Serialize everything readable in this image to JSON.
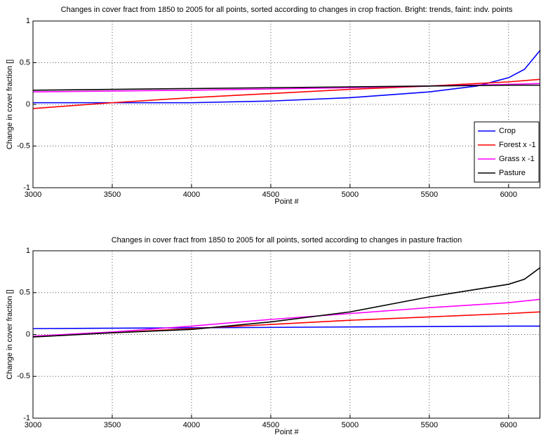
{
  "chart_data": [
    {
      "type": "line",
      "title": "Changes in cover fract from 1850 to 2005 for all points, sorted according to changes in crop fraction. Bright: trends, faint: indv. points",
      "x_label": "Point #",
      "y_label": "Change in cover fraction []",
      "xlim": [
        3000,
        6200
      ],
      "ylim": [
        -1,
        1
      ],
      "xticks": [
        3000,
        3500,
        4000,
        4500,
        5000,
        5500,
        6000
      ],
      "yticks": [
        -1,
        -0.5,
        0,
        0.5,
        1
      ],
      "grid": true,
      "legend": "lower right",
      "series": [
        {
          "name": "Crop",
          "color": "#0000ff",
          "x": [
            3000,
            4000,
            4500,
            5000,
            5500,
            5800,
            6000,
            6100,
            6200
          ],
          "values": [
            0.02,
            0.02,
            0.04,
            0.08,
            0.15,
            0.22,
            0.32,
            0.42,
            0.65
          ]
        },
        {
          "name": "Forest x -1",
          "color": "#ff0000",
          "x": [
            3000,
            3500,
            4000,
            4500,
            5000,
            5500,
            6000,
            6200
          ],
          "values": [
            -0.05,
            0.02,
            0.08,
            0.13,
            0.18,
            0.22,
            0.27,
            0.3
          ]
        },
        {
          "name": "Grass x -1",
          "color": "#ff00ff",
          "x": [
            3000,
            4000,
            5000,
            5500,
            6000,
            6200
          ],
          "values": [
            0.15,
            0.17,
            0.2,
            0.22,
            0.24,
            0.25
          ]
        },
        {
          "name": "Pasture",
          "color": "#000000",
          "x": [
            3000,
            4000,
            5000,
            5500,
            6000,
            6200
          ],
          "values": [
            0.17,
            0.19,
            0.21,
            0.22,
            0.23,
            0.23
          ]
        }
      ]
    },
    {
      "type": "line",
      "title": "Changes in cover fract from 1850 to 2005 for all points, sorted according to changes in pasture fraction",
      "x_label": "Point #",
      "y_label": "Change in cover fraction []",
      "xlim": [
        3000,
        6200
      ],
      "ylim": [
        -1,
        1
      ],
      "xticks": [
        3000,
        3500,
        4000,
        4500,
        5000,
        5500,
        6000
      ],
      "yticks": [
        -1,
        -0.5,
        0,
        0.5,
        1
      ],
      "grid": true,
      "series": [
        {
          "color": "#0000ff",
          "x": [
            3000,
            4000,
            5000,
            6000,
            6200
          ],
          "values": [
            0.07,
            0.08,
            0.09,
            0.1,
            0.1
          ]
        },
        {
          "color": "#ff0000",
          "x": [
            3000,
            3500,
            4000,
            4500,
            5000,
            5500,
            6000,
            6200
          ],
          "values": [
            -0.02,
            0.02,
            0.07,
            0.12,
            0.17,
            0.21,
            0.25,
            0.27
          ]
        },
        {
          "color": "#ff00ff",
          "x": [
            3000,
            3500,
            4000,
            4500,
            5000,
            5500,
            6000,
            6200
          ],
          "values": [
            -0.02,
            0.03,
            0.1,
            0.18,
            0.25,
            0.32,
            0.38,
            0.42
          ]
        },
        {
          "color": "#000000",
          "x": [
            3000,
            3500,
            4000,
            4500,
            5000,
            5500,
            6000,
            6100,
            6200
          ],
          "values": [
            -0.03,
            0.02,
            0.06,
            0.15,
            0.27,
            0.45,
            0.6,
            0.66,
            0.8
          ]
        }
      ]
    }
  ]
}
